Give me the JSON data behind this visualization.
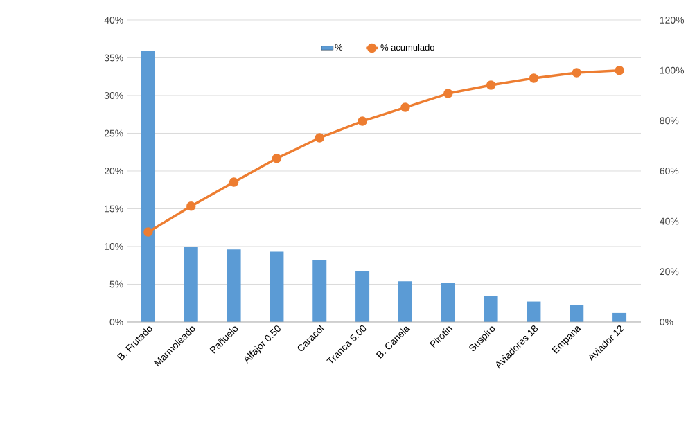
{
  "chart_data": {
    "type": "bar",
    "categories": [
      "B. Frutado",
      "Marmoleado",
      "Pañuelo",
      "Alfajor 0.50",
      "Caracol",
      "Tranca 5.00",
      "B. Canela",
      "Pirotin",
      "Suspiro",
      "Aviadores 18",
      "Empana",
      "Aviador  12"
    ],
    "series": [
      {
        "name": "%",
        "color": "#5b9bd5",
        "values": [
          35.9,
          10.0,
          9.6,
          9.3,
          8.2,
          6.7,
          5.4,
          5.2,
          3.4,
          2.7,
          2.2,
          1.2
        ]
      },
      {
        "name": "% acumulado",
        "type": "line",
        "axis": "y2",
        "color": "#ed7d31",
        "marker": "circle",
        "values": [
          35.8,
          46.0,
          55.6,
          65.0,
          73.2,
          79.8,
          85.3,
          90.8,
          94.1,
          96.9,
          99.1,
          100
        ]
      }
    ],
    "ylim": [
      0,
      40
    ],
    "yticks": [
      {
        "value": 0,
        "label": "0%"
      },
      {
        "value": 5,
        "label": "5%"
      },
      {
        "value": 10,
        "label": "10%"
      },
      {
        "value": 15,
        "label": "15%"
      },
      {
        "value": 20,
        "label": "20%"
      },
      {
        "value": 25,
        "label": "25%"
      },
      {
        "value": 30,
        "label": "30%"
      },
      {
        "value": 35,
        "label": "35%"
      },
      {
        "value": 40,
        "label": "40%"
      }
    ],
    "y2lim": [
      0,
      120
    ],
    "y2ticks": [
      {
        "value": 0,
        "label": "0%"
      },
      {
        "value": 20,
        "label": "20%"
      },
      {
        "value": 40,
        "label": "40%"
      },
      {
        "value": 60,
        "label": "60%"
      },
      {
        "value": 80,
        "label": "80%"
      },
      {
        "value": 100,
        "label": "100%"
      },
      {
        "value": 120,
        "label": "120%"
      }
    ],
    "grid": "y",
    "legend": "top"
  }
}
